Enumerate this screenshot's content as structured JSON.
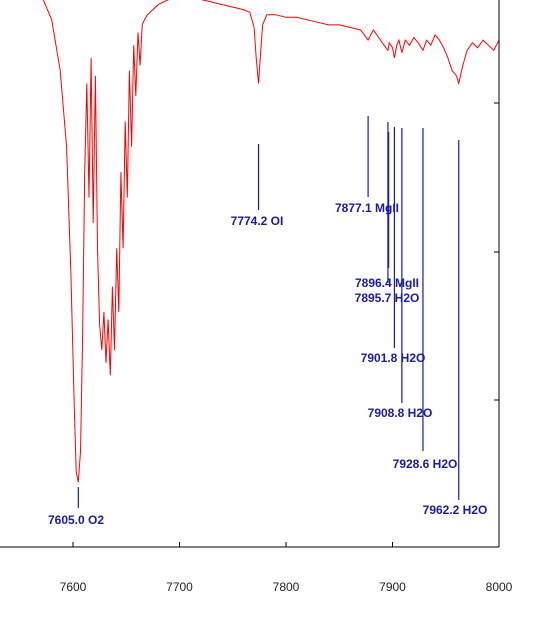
{
  "chart_data": {
    "type": "line",
    "title": "",
    "xlabel": "",
    "ylabel": "",
    "xlim": [
      7500,
      8000
    ],
    "xticks": [
      "7600",
      "7700",
      "7800",
      "7900",
      "8000"
    ],
    "grid": false,
    "colors": {
      "spectrum": "#ff0000",
      "annotation": "#1a1aaa",
      "axis": "#000000"
    },
    "series": [
      {
        "x": [
          7500,
          7520,
          7540,
          7560,
          7570,
          7580,
          7588,
          7594,
          7598,
          7601,
          7603,
          7605,
          7607,
          7609,
          7611,
          7613,
          7615,
          7617,
          7619,
          7621,
          7623,
          7625,
          7627,
          7629,
          7631,
          7633,
          7635,
          7637,
          7639,
          7641,
          7643,
          7645,
          7647,
          7649,
          7651,
          7653,
          7655,
          7657,
          7659,
          7661,
          7663,
          7665,
          7667,
          7670,
          7675,
          7680,
          7690,
          7700,
          7710,
          7720,
          7730,
          7740,
          7750,
          7760,
          7766,
          7770,
          7772,
          7774.2,
          7776,
          7778,
          7782,
          7790,
          7800,
          7810,
          7820,
          7830,
          7840,
          7850,
          7860,
          7870,
          7877.1,
          7882,
          7887,
          7892,
          7895.7,
          7897,
          7900,
          7901.8,
          7904,
          7906,
          7908.8,
          7912,
          7916,
          7920,
          7924,
          7928.6,
          7932,
          7936,
          7940,
          7944,
          7948,
          7952,
          7956,
          7960,
          7962.2,
          7966,
          7970,
          7975,
          7980,
          7985,
          7990,
          7995,
          8000
        ],
        "y": [
          0.55,
          0.58,
          0.56,
          0.48,
          0.4,
          0.3,
          0.1,
          -0.2,
          -0.7,
          -1.2,
          -1.48,
          -1.52,
          -1.4,
          -0.95,
          -0.3,
          0.05,
          -0.4,
          0.15,
          -0.5,
          0.08,
          -0.6,
          -0.9,
          -1.0,
          -0.85,
          -1.05,
          -0.88,
          -1.1,
          -0.75,
          -1.0,
          -0.6,
          -0.85,
          -0.3,
          -0.6,
          -0.1,
          -0.4,
          0.1,
          -0.2,
          0.2,
          0.0,
          0.25,
          0.12,
          0.28,
          0.3,
          0.32,
          0.34,
          0.36,
          0.38,
          0.39,
          0.38,
          0.38,
          0.37,
          0.36,
          0.35,
          0.34,
          0.33,
          0.27,
          0.15,
          0.05,
          0.16,
          0.28,
          0.32,
          0.32,
          0.31,
          0.31,
          0.3,
          0.29,
          0.28,
          0.28,
          0.27,
          0.26,
          0.22,
          0.26,
          0.23,
          0.2,
          0.18,
          0.21,
          0.19,
          0.15,
          0.2,
          0.22,
          0.17,
          0.22,
          0.2,
          0.23,
          0.21,
          0.18,
          0.22,
          0.2,
          0.24,
          0.22,
          0.19,
          0.15,
          0.1,
          0.08,
          0.05,
          0.12,
          0.18,
          0.21,
          0.19,
          0.22,
          0.2,
          0.18,
          0.22
        ]
      }
    ],
    "annotations": [
      {
        "wavelength": 7605.0,
        "label": "7605.0  O2"
      },
      {
        "wavelength": 7774.2,
        "label": "7774.2  OI"
      },
      {
        "wavelength": 7877.1,
        "label": "7877.1  MgII"
      },
      {
        "wavelength": 7896.4,
        "label": "7896.4  MgII"
      },
      {
        "wavelength": 7895.7,
        "label": "7895.7  H2O"
      },
      {
        "wavelength": 7901.8,
        "label": "7901.8  H2O"
      },
      {
        "wavelength": 7908.8,
        "label": "7908.8  H2O"
      },
      {
        "wavelength": 7928.6,
        "label": "7928.6  H2O"
      },
      {
        "wavelength": 7962.2,
        "label": "7962.2  H2O"
      }
    ]
  }
}
